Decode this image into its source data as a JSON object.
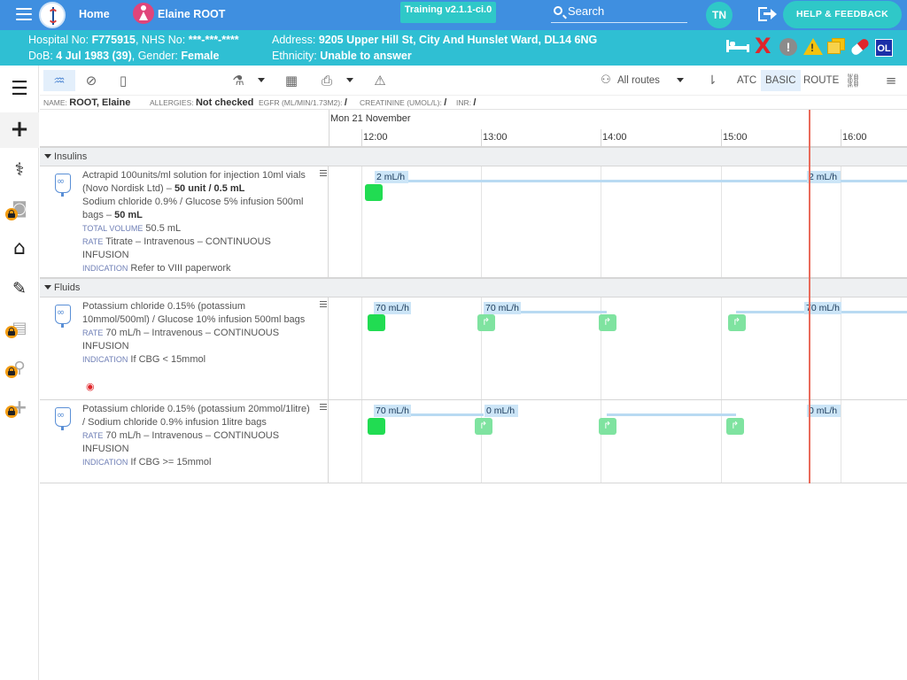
{
  "topbar": {
    "home": "Home",
    "patient_name": "Elaine ROOT",
    "training": "Training v2.1.1-ci.0",
    "search": "Search",
    "user_initials": "TN",
    "help": "HELP & FEEDBACK"
  },
  "banner": {
    "hospital_label": "Hospital No:",
    "hospital_no": "F775915",
    "nhs_label": "NHS No:",
    "nhs_no": "***-***-****",
    "dob_label": "DoB:",
    "dob": "4 Jul 1983 (39)",
    "gender_label": "Gender:",
    "gender": "Female",
    "address_label": "Address:",
    "address": "9205 Upper Hill St, City And Hunslet Ward, DL14 6NG",
    "ethnicity_label": "Ethnicity:",
    "ethnicity": "Unable to answer",
    "indicator_x": "X",
    "indicator_excl": "!",
    "indicator_warn": "!",
    "indicator_ol": "OL"
  },
  "leftnav": {
    "items": [
      "list-icon",
      "add-icon",
      "stethoscope-icon",
      "camera-icon",
      "home-care-icon",
      "document-sign-icon",
      "clipboard-icon",
      "walking-icon",
      "plus-icon"
    ]
  },
  "toolbar": {
    "routes": "All routes",
    "atc": "ATC",
    "basic": "BASIC",
    "route": "ROUTE"
  },
  "infoline": {
    "name_label": "Name:",
    "name": "ROOT, Elaine",
    "allergies_label": "Allergies:",
    "allergies": "Not checked",
    "egfr_label": "eGFR (mL/min/1.73m2):",
    "egfr": "/",
    "creat_label": "Creatinine (umol/L):",
    "creat": "/",
    "inr_label": "INR:",
    "inr": "/"
  },
  "timeline": {
    "date": "Mon 21 November",
    "hours": [
      "12:00",
      "13:00",
      "14:00",
      "15:00",
      "16:00"
    ]
  },
  "sections": [
    {
      "title": "Insulins",
      "meds": [
        {
          "line1": "Actrapid 100units/ml solution for injection 10ml vials (Novo Nordisk Ltd)",
          "dose1": "50 unit / 0.5 mL",
          "line2": "Sodium chloride 0.9% / Glucose 5% infusion 500ml bags",
          "dose2": "50 mL",
          "total_label": "Total volume",
          "total": "50.5 mL",
          "rate_label": "Rate",
          "rate": "Titrate – Intravenous – CONTINUOUS INFUSION",
          "indication_label": "Indication",
          "indication": "Refer to VIII paperwork",
          "bars": [
            "2 mL/h",
            "2 mL/h"
          ]
        }
      ]
    },
    {
      "title": "Fluids",
      "meds": [
        {
          "line1": "Potassium chloride 0.15% (potassium 10mmol/500ml) / Glucose 10% infusion 500ml bags",
          "rate_label": "Rate",
          "rate": "70 mL/h – Intravenous – CONTINUOUS INFUSION",
          "indication_label": "Indication",
          "indication": "If CBG < 15mmol",
          "bars": [
            "70 mL/h",
            "70 mL/h",
            "70 mL/h"
          ]
        },
        {
          "line1": "Potassium chloride 0.15% (potassium 20mmol/1litre) / Sodium chloride 0.9% infusion 1litre bags",
          "rate_label": "Rate",
          "rate": "70 mL/h – Intravenous – CONTINUOUS INFUSION",
          "indication_label": "Indication",
          "indication": "If CBG >= 15mmol",
          "bars": [
            "70 mL/h",
            "0 mL/h",
            "0 mL/h"
          ]
        }
      ]
    }
  ]
}
